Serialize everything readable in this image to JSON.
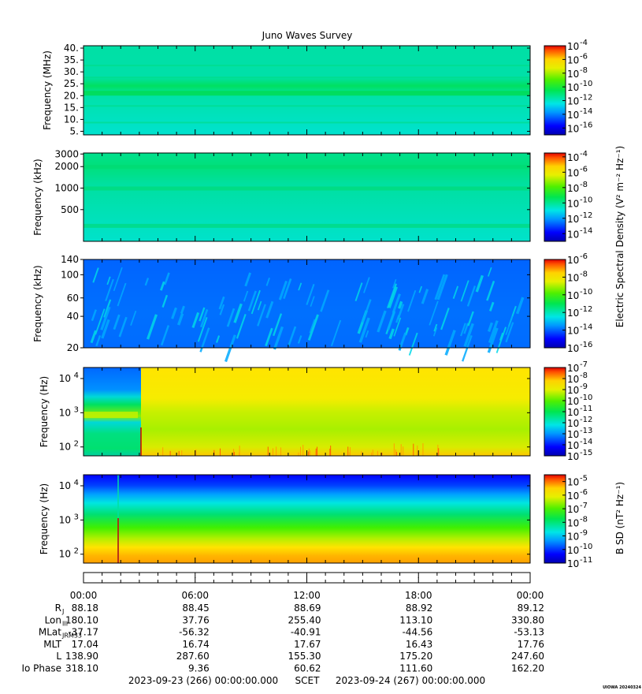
{
  "chart_data": {
    "type": "heatmap",
    "title": "Juno Waves Survey",
    "x_tick_labels": [
      "00:00",
      "06:00",
      "12:00",
      "18:00",
      "00:00"
    ],
    "panels": [
      {
        "ylabel": "Frequency (MHz)",
        "y_scale": "linear",
        "ylim": [
          3.5,
          41
        ],
        "yticks": [
          {
            "v": 40,
            "label": "40."
          },
          {
            "v": 35,
            "label": "35."
          },
          {
            "v": 30,
            "label": "30."
          },
          {
            "v": 25,
            "label": "25."
          },
          {
            "v": 20,
            "label": "20."
          },
          {
            "v": 15,
            "label": "15."
          },
          {
            "v": 10,
            "label": "10."
          },
          {
            "v": 5,
            "label": "5."
          }
        ],
        "colorbar_exponents": [
          -4,
          -6,
          -8,
          -10,
          -12,
          -14,
          -16
        ],
        "colorbar_range": [
          -17,
          -4
        ]
      },
      {
        "ylabel": "Frequency (kHz)",
        "y_scale": "log",
        "ylim": [
          180,
          3100
        ],
        "yticks": [
          {
            "v": 3000,
            "label": "3000"
          },
          {
            "v": 2000,
            "label": "2000"
          },
          {
            "v": 1000,
            "label": "1000"
          },
          {
            "v": 500,
            "label": "500"
          }
        ],
        "colorbar_exponents": [
          -4,
          -6,
          -8,
          -10,
          -12,
          -14
        ],
        "colorbar_range": [
          -15,
          -3.5
        ]
      },
      {
        "ylabel": "Frequency (kHz)",
        "y_scale": "log",
        "ylim": [
          20,
          140
        ],
        "yticks": [
          {
            "v": 140,
            "label": "140"
          },
          {
            "v": 100,
            "label": "100"
          },
          {
            "v": 60,
            "label": "60"
          },
          {
            "v": 40,
            "label": "40"
          },
          {
            "v": 20,
            "label": "20"
          }
        ],
        "colorbar_exponents": [
          -6,
          -8,
          -10,
          -12,
          -14,
          -16
        ],
        "colorbar_range": [
          -16,
          -6
        ]
      },
      {
        "ylabel": "Frequency (Hz)",
        "y_scale": "log",
        "ylim": [
          55,
          21000
        ],
        "yticks": [
          {
            "v": 10000,
            "label": "10",
            "exp": "4"
          },
          {
            "v": 1000,
            "label": "10",
            "exp": "3"
          },
          {
            "v": 100,
            "label": "10",
            "exp": "2"
          }
        ],
        "colorbar_exponents": [
          -7,
          -8,
          -9,
          -10,
          -11,
          -12,
          -13,
          -14,
          -15
        ],
        "colorbar_range": [
          -15,
          -7
        ]
      },
      {
        "ylabel": "Frequency (Hz)",
        "y_scale": "log",
        "ylim": [
          55,
          21000
        ],
        "yticks": [
          {
            "v": 10000,
            "label": "10",
            "exp": "4"
          },
          {
            "v": 1000,
            "label": "10",
            "exp": "3"
          },
          {
            "v": 100,
            "label": "10",
            "exp": "2"
          }
        ],
        "colorbar_exponents": [
          -5,
          -6,
          -7,
          -8,
          -9,
          -10,
          -11
        ],
        "colorbar_range": [
          -11,
          -4.5
        ]
      }
    ],
    "colorbar_labels": {
      "electric": "Electric Spectral Density (V² m⁻² Hz⁻¹)",
      "magnetic": "B SD (nT² Hz⁻¹)"
    },
    "ephemeris": [
      {
        "label": "R",
        "sub": "J",
        "values": [
          "88.18",
          "88.45",
          "88.69",
          "88.92",
          "89.12"
        ]
      },
      {
        "label": "Lon",
        "sub": "III",
        "values": [
          "180.10",
          "37.76",
          "255.40",
          "113.10",
          "330.80"
        ]
      },
      {
        "label": "MLat",
        "sub": "JRM33",
        "values": [
          "-37.17",
          "-56.32",
          "-40.91",
          "-44.56",
          "-53.13"
        ]
      },
      {
        "label": "MLT",
        "sub": "",
        "values": [
          "17.04",
          "16.74",
          "17.67",
          "16.43",
          "17.76"
        ]
      },
      {
        "label": "L",
        "sub": "",
        "values": [
          "138.90",
          "287.60",
          "155.30",
          "175.20",
          "247.60"
        ]
      },
      {
        "label": "Io Phase",
        "sub": "",
        "values": [
          "318.10",
          "9.36",
          "60.62",
          "111.60",
          "162.20"
        ]
      }
    ],
    "time_range": {
      "start": "2023-09-23 (266) 00:00:00.000",
      "frame": "SCET",
      "end": "2023-09-24 (267) 00:00:00.000"
    },
    "credit": "UIOWA 20240324"
  }
}
